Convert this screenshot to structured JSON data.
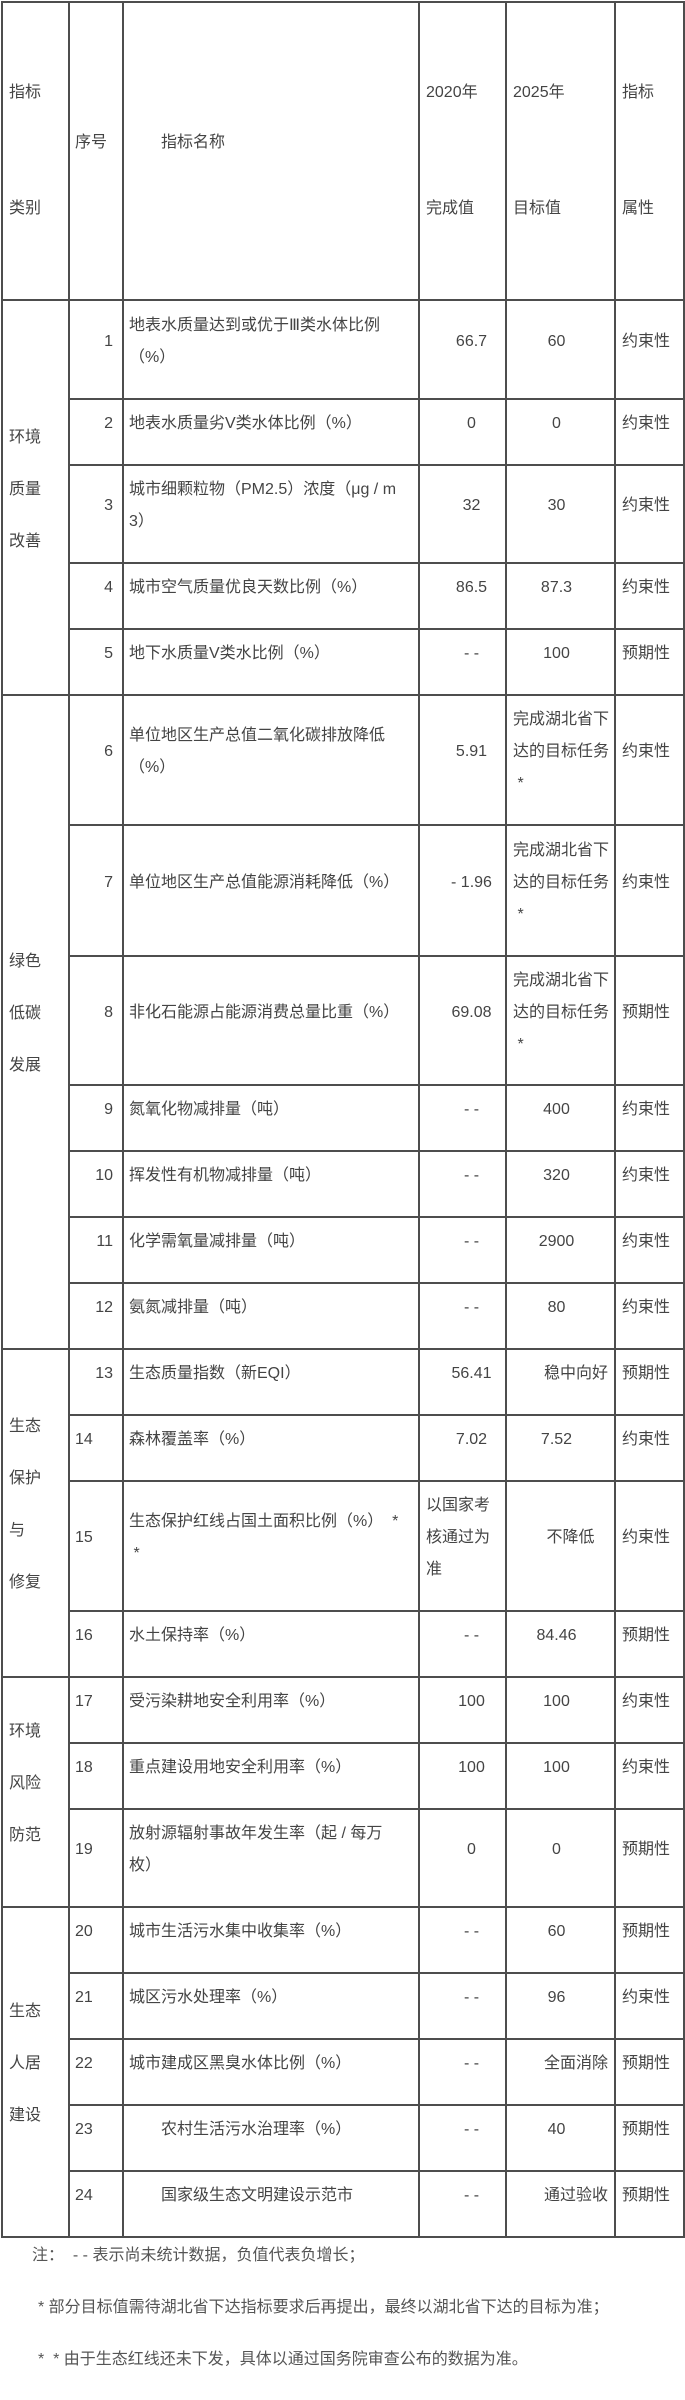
{
  "header": {
    "category": [
      "指标",
      "类别"
    ],
    "seq": "序号",
    "name": "指标名称",
    "v2020": [
      "2020年",
      "完成值"
    ],
    "v2025": [
      "2025年",
      "目标值"
    ],
    "attr": [
      "指标",
      "属性"
    ]
  },
  "categories": [
    {
      "lines": [
        "环境",
        "质量",
        "改善"
      ]
    },
    {
      "lines": [
        "绿色",
        "低碳",
        "发展"
      ]
    },
    {
      "lines": [
        "生态",
        "保护",
        "与",
        "修复"
      ]
    },
    {
      "lines": [
        "环境",
        "风险",
        "防范"
      ]
    },
    {
      "lines": [
        "生态",
        "人居",
        "建设"
      ]
    }
  ],
  "rows": [
    {
      "seq": "1",
      "name": "地表水质量达到或优于Ⅲ类水体比例\n（%）",
      "v2020": "66.7",
      "v2025": "60",
      "attr": "约束性"
    },
    {
      "seq": "2",
      "name": "地表水质量劣V类水体比例（%）",
      "v2020": "0",
      "v2025": "0",
      "attr": "约束性"
    },
    {
      "seq": "3",
      "name": "城市细颗粒物（PM2.5）浓度（μg / m\n3）",
      "v2020": "32",
      "v2025": "30",
      "attr": "约束性"
    },
    {
      "seq": "4",
      "name": "城市空气质量优良天数比例（%）",
      "v2020": "86.5",
      "v2025": "87.3",
      "attr": "约束性"
    },
    {
      "seq": "5",
      "name": "地下水质量V类水比例（%）",
      "v2020": "- -",
      "v2025": "100",
      "attr": "预期性"
    },
    {
      "seq": "6",
      "name": "单位地区生产总值二氧化碳排放降低\n（%）",
      "v2020": "5.91",
      "v2025": "完成湖北省下\n达的目标任务\n *",
      "attr": "约束性"
    },
    {
      "seq": "7",
      "name": "单位地区生产总值能源消耗降低（%）",
      "v2020": "- 1.96",
      "v2025": "完成湖北省下\n达的目标任务\n *",
      "attr": "约束性"
    },
    {
      "seq": "8",
      "name": "非化石能源占能源消费总量比重（%）",
      "v2020": "69.08",
      "v2025": "完成湖北省下\n达的目标任务\n *",
      "attr": "预期性"
    },
    {
      "seq": "9",
      "name": "氮氧化物减排量（吨）",
      "v2020": "- -",
      "v2025": "400",
      "attr": "约束性"
    },
    {
      "seq": "10",
      "name": "挥发性有机物减排量（吨）",
      "v2020": "- -",
      "v2025": "320",
      "attr": "约束性"
    },
    {
      "seq": "11",
      "name": "化学需氧量减排量（吨）",
      "v2020": "- -",
      "v2025": "2900",
      "attr": "约束性"
    },
    {
      "seq": "12",
      "name": "氨氮减排量（吨）",
      "v2020": "- -",
      "v2025": "80",
      "attr": "约束性"
    },
    {
      "seq": "13",
      "name": "生态质量指数（新EQI）",
      "v2020": "56.41",
      "v2025": "稳中向好",
      "attr": "预期性"
    },
    {
      "seq": "14",
      "name": "森林覆盖率（%）",
      "v2020": "7.02",
      "v2025": "7.52",
      "attr": "约束性"
    },
    {
      "seq": "15",
      "name": "生态保护红线占国土面积比例（%）  *\n *",
      "v2020": "以国家考\n核通过为\n准",
      "v2025": "不降低",
      "attr": "约束性"
    },
    {
      "seq": "16",
      "name": "水土保持率（%）",
      "v2020": "- -",
      "v2025": "84.46",
      "attr": "预期性"
    },
    {
      "seq": "17",
      "name": "受污染耕地安全利用率（%）",
      "v2020": "100",
      "v2025": "100",
      "attr": "约束性"
    },
    {
      "seq": "18",
      "name": "重点建设用地安全利用率（%）",
      "v2020": "100",
      "v2025": "100",
      "attr": "约束性"
    },
    {
      "seq": "19",
      "name": "放射源辐射事故年发生率（起 / 每万\n枚）",
      "v2020": "0",
      "v2025": "0",
      "attr": "预期性"
    },
    {
      "seq": "20",
      "name": "城市生活污水集中收集率（%）",
      "v2020": "- -",
      "v2025": "60",
      "attr": "预期性"
    },
    {
      "seq": "21",
      "name": "城区污水处理率（%）",
      "v2020": "- -",
      "v2025": "96",
      "attr": "约束性"
    },
    {
      "seq": "22",
      "name": "城市建成区黑臭水体比例（%）",
      "v2020": "- -",
      "v2025": "全面消除",
      "attr": "预期性"
    },
    {
      "seq": "23",
      "name": "农村生活污水治理率（%）",
      "v2020": "- -",
      "v2025": "40",
      "attr": "预期性"
    },
    {
      "seq": "24",
      "name": "国家级生态文明建设示范市",
      "v2020": "- -",
      "v2025": "通过验收",
      "attr": "预期性"
    }
  ],
  "notes": [
    "注：  - - 表示尚未统计数据，负值代表负增长；",
    "* 部分目标值需待湖北省下达指标要求后再提出，最终以湖北省下达的目标为准；",
    "*  * 由于生态红线还未下发，具体以通过国务院审查公布的数据为准。"
  ]
}
